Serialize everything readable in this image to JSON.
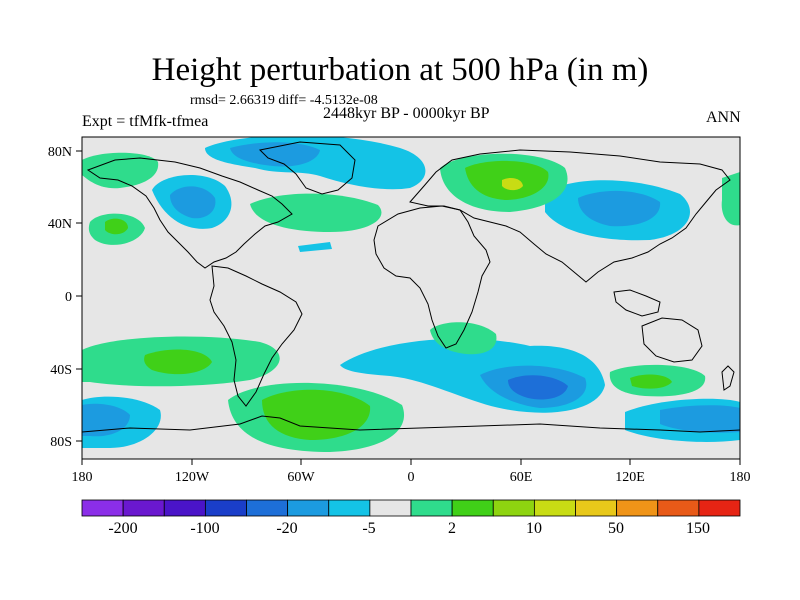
{
  "title": "Height perturbation at 500 hPa (in m)",
  "stats": "rmsd= 2.66319 diff= -4.5132e-08",
  "experiment": "Expt = tfMfk-tfmea",
  "period": "2448kyr BP - 0000kyr BP",
  "season": "ANN",
  "lat_labels": [
    "80N",
    "40N",
    "0",
    "40S",
    "80S"
  ],
  "lon_labels": [
    "180",
    "120W",
    "60W",
    "0",
    "60E",
    "120E",
    "180"
  ],
  "colorbar": {
    "colors": [
      "#8b2ee8",
      "#6a18cf",
      "#4a14c8",
      "#1a3ec9",
      "#1d6fd8",
      "#1c9be0",
      "#14c3e6",
      "#e6e6e6",
      "#2fdc8c",
      "#40d018",
      "#8ed410",
      "#c8dc14",
      "#e8c81a",
      "#f09418",
      "#e85a18",
      "#e62414"
    ],
    "labels": [
      "-200",
      "-100",
      "-20",
      "-5",
      "2",
      "10",
      "50",
      "150"
    ]
  }
}
